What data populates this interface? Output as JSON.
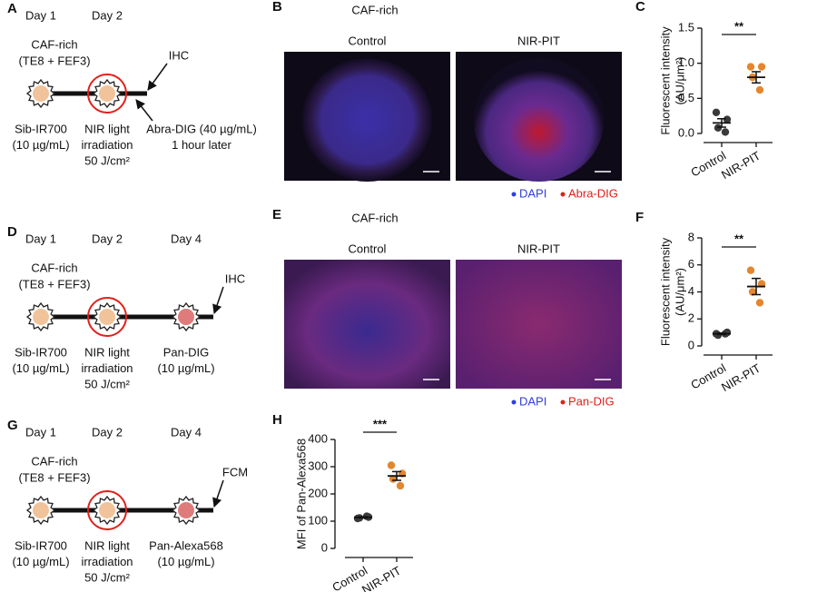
{
  "figure": {
    "A": {
      "label": "A",
      "days": [
        "Day 1",
        "Day 2"
      ],
      "culture": [
        "CAF-rich",
        "(TE8 + FEF3)"
      ],
      "readout": "IHC",
      "steps": [
        [
          "Sib-IR700",
          "(10 µg/mL)"
        ],
        [
          "NIR light",
          "irradiation",
          "50 J/cm²"
        ]
      ],
      "probe": [
        "Abra-DIG (40 µg/mL)",
        "1 hour later"
      ]
    },
    "B": {
      "label": "B",
      "title": "CAF-rich",
      "columns": [
        "Control",
        "NIR-PIT"
      ],
      "legend": [
        "DAPI",
        "Abra-DIG"
      ]
    },
    "D": {
      "label": "D",
      "days": [
        "Day 1",
        "Day 2",
        "Day 4"
      ],
      "culture": [
        "CAF-rich",
        "(TE8 + FEF3)"
      ],
      "readout": "IHC",
      "steps": [
        [
          "Sib-IR700",
          "(10 µg/mL)"
        ],
        [
          "NIR light",
          "irradiation",
          "50 J/cm²"
        ],
        [
          "Pan-DIG",
          "(10 µg/mL)"
        ]
      ]
    },
    "E": {
      "label": "E",
      "title": "CAF-rich",
      "columns": [
        "Control",
        "NIR-PIT"
      ],
      "legend": [
        "DAPI",
        "Pan-DIG"
      ]
    },
    "G": {
      "label": "G",
      "days": [
        "Day 1",
        "Day 2",
        "Day 4"
      ],
      "culture": [
        "CAF-rich",
        "(TE8 + FEF3)"
      ],
      "readout": "FCM",
      "steps": [
        [
          "Sib-IR700",
          "(10 µg/mL)"
        ],
        [
          "NIR light",
          "irradiation",
          "50 J/cm²"
        ],
        [
          "Pan-Alexa568",
          "(10 µg/mL)"
        ]
      ]
    }
  },
  "chart_data": [
    {
      "type": "scatter",
      "label": "C",
      "ylabel": [
        "Fluorescent intensity",
        "(AU/μm²)"
      ],
      "categories": [
        "Control",
        "NIR-PIT"
      ],
      "series": [
        {
          "color": "#3a3a3a",
          "values": [
            0.3,
            0.2,
            0.08,
            0.02
          ],
          "mean": 0.15,
          "sem": 0.06
        },
        {
          "color": "#e3862f",
          "values": [
            0.95,
            0.95,
            0.8,
            0.62
          ],
          "mean": 0.8,
          "sem": 0.08
        }
      ],
      "significance": "**",
      "ylim": [
        0,
        1.5
      ],
      "yticks": [
        {
          "value": 0,
          "label": "0.0"
        },
        0.5,
        {
          "value": 1,
          "label": "1.0"
        },
        1.5
      ]
    },
    {
      "type": "scatter",
      "label": "F",
      "ylabel": [
        "Fluorescent intensity",
        "(AU/μm²)"
      ],
      "categories": [
        "Control",
        "NIR-PIT"
      ],
      "series": [
        {
          "color": "#3a3a3a",
          "values": [
            0.9,
            1.0,
            0.8,
            0.9
          ],
          "mean": 0.9,
          "sem": 0.05
        },
        {
          "color": "#e3862f",
          "values": [
            5.6,
            4.6,
            4.0,
            3.2
          ],
          "mean": 4.4,
          "sem": 0.6
        }
      ],
      "significance": "**",
      "ylim": [
        0,
        8
      ],
      "yticks": [
        0,
        2,
        4,
        6,
        8
      ]
    },
    {
      "type": "scatter",
      "label": "H",
      "ylabel": [
        "MFI of Pan-Alexa568"
      ],
      "categories": [
        "Control",
        "NIR-PIT"
      ],
      "series": [
        {
          "color": "#3a3a3a",
          "values": [
            110,
            115,
            112,
            118
          ],
          "mean": 114,
          "sem": 2
        },
        {
          "color": "#e3862f",
          "values": [
            305,
            275,
            255,
            230
          ],
          "mean": 266,
          "sem": 16
        }
      ],
      "significance": "***",
      "ylim": [
        0,
        400
      ],
      "yticks": [
        0,
        100,
        200,
        300,
        400
      ]
    }
  ]
}
